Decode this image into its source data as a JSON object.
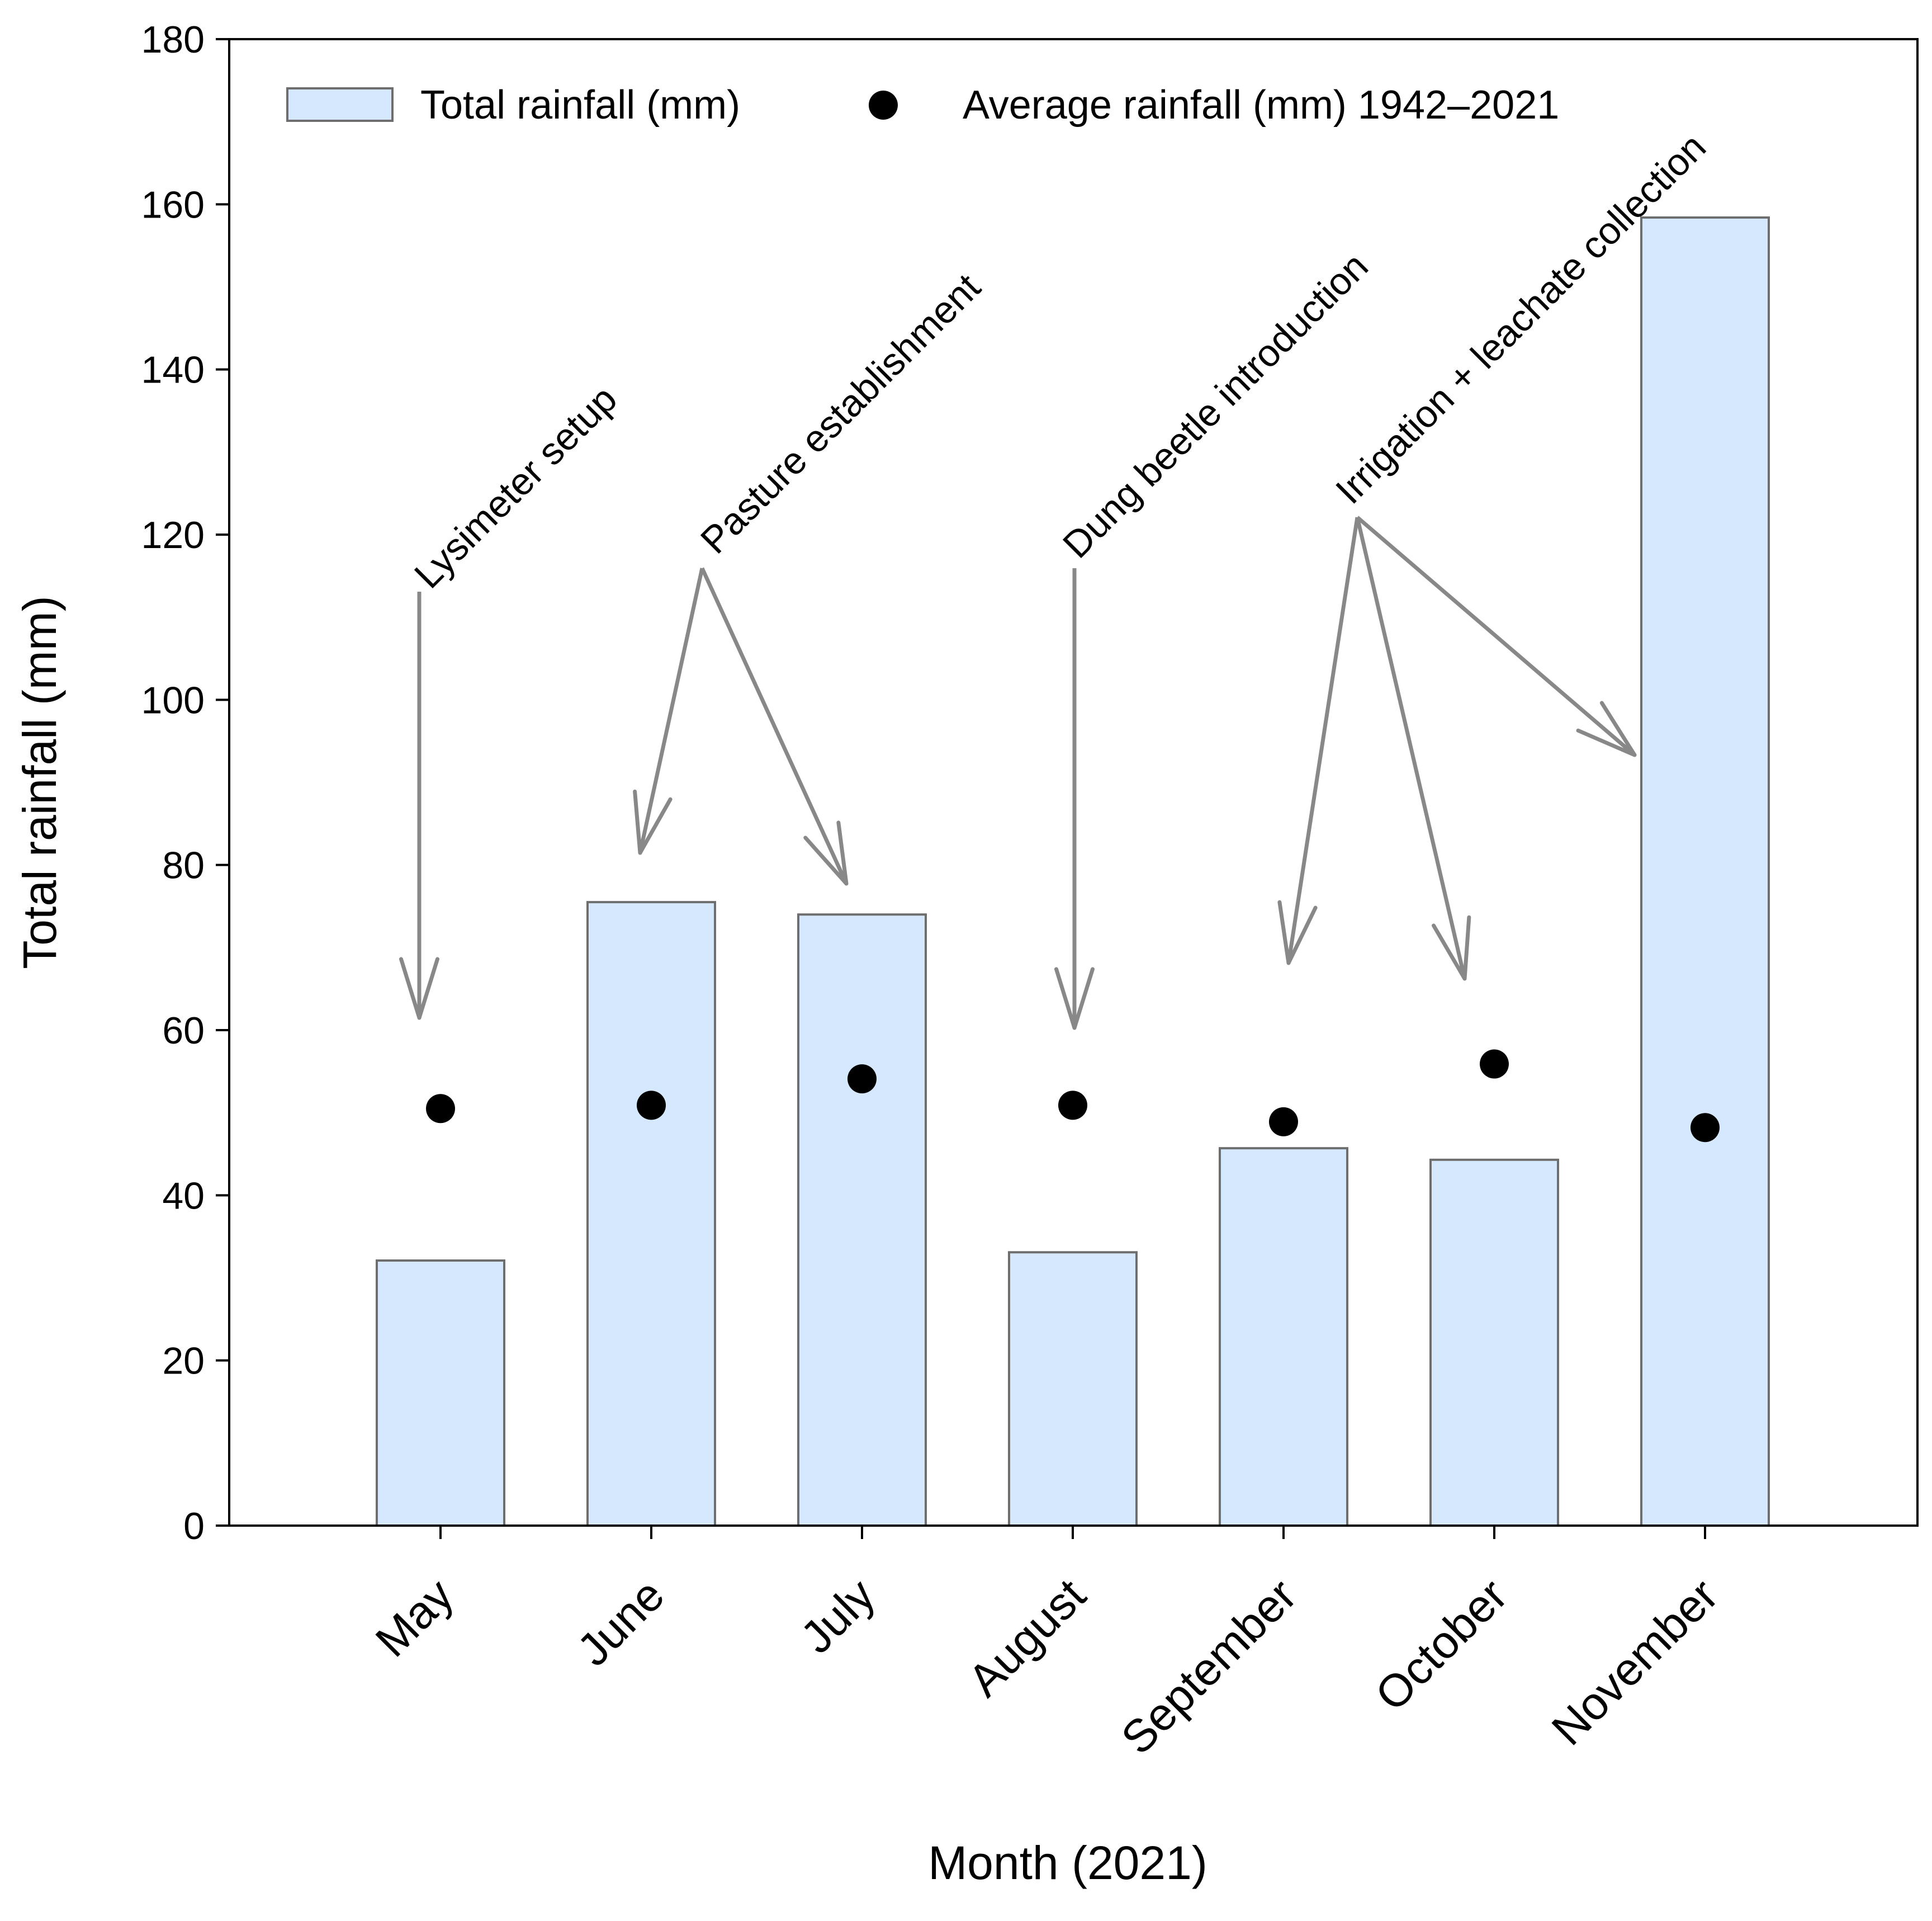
{
  "chart_data": {
    "type": "bar",
    "xlabel": "Month (2021)",
    "ylabel": "Total rainfall (mm)",
    "ylim": [
      0,
      180
    ],
    "yticks": [
      0,
      20,
      40,
      60,
      80,
      100,
      120,
      140,
      160,
      180
    ],
    "grid": false,
    "legend_position": "top",
    "categories": [
      "May",
      "June",
      "July",
      "August",
      "September",
      "October",
      "November"
    ],
    "series": [
      {
        "name": "Total rainfall (mm)",
        "kind": "bar",
        "values": [
          32.1,
          75.5,
          74.0,
          33.1,
          45.7,
          44.3,
          158.4
        ]
      },
      {
        "name": "Average rainfall (mm) 1942–2021",
        "kind": "point",
        "values": [
          50.5,
          50.9,
          54.1,
          50.9,
          48.9,
          55.9,
          48.2
        ]
      }
    ],
    "annotations": [
      {
        "text": "Lysimeter setup",
        "targets": [
          "May"
        ]
      },
      {
        "text": "Pasture establishment",
        "targets": [
          "June",
          "July"
        ]
      },
      {
        "text": "Dung beetle introduction",
        "targets": [
          "August"
        ]
      },
      {
        "text": "Irrigation + leachate collection",
        "targets": [
          "September",
          "October",
          "November"
        ]
      }
    ],
    "colors": {
      "bar_fill": "#d6e8fd",
      "bar_stroke": "#6e6e6e",
      "point": "#000000",
      "arrow": "#888888",
      "axis": "#000000"
    }
  }
}
